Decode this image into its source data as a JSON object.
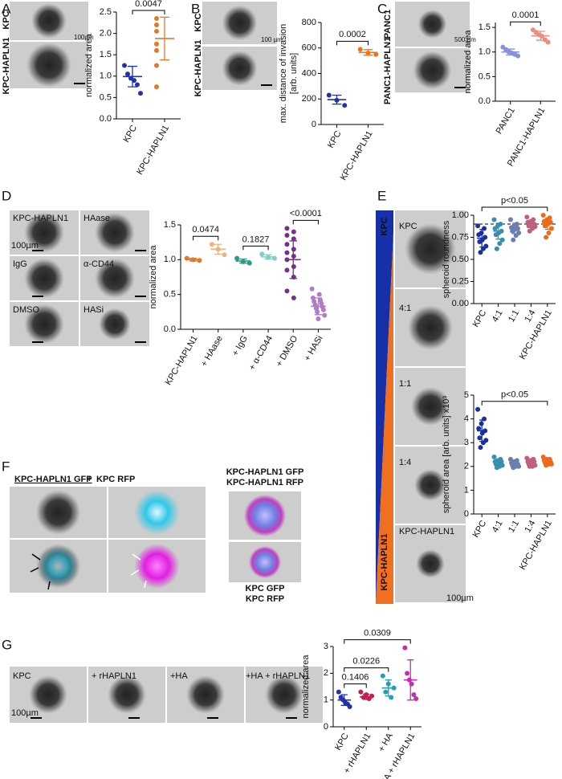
{
  "chart_data": [
    {
      "type": "dot",
      "ylabel": "normalized area",
      "ylim": [
        0,
        2.5
      ],
      "yticks": [
        {
          "value": 0,
          "label": "0.0"
        },
        {
          "value": 0.5,
          "label": "0.5"
        },
        {
          "value": 1,
          "label": "1.0"
        },
        {
          "value": 1.5,
          "label": "1.5"
        },
        {
          "value": 2,
          "label": "2.0"
        },
        {
          "value": 2.5,
          "label": "2.5"
        }
      ],
      "groups": [
        {
          "name": "KPC",
          "color": "#2233aa",
          "points": [
            1.25,
            1.05,
            0.95,
            0.9,
            0.8,
            0.6
          ],
          "mean": 0.99,
          "sd": 0.24
        },
        {
          "name": "KPC-HAPLN1",
          "color": "#e87722",
          "points": [
            2.35,
            2.2,
            2.05,
            1.75,
            1.6,
            1.25,
            0.75
          ],
          "mean": 1.88,
          "sd": 0.5
        }
      ],
      "brackets": [
        {
          "between": [
            0,
            1
          ],
          "label": "0.0047"
        }
      ]
    },
    {
      "type": "dot",
      "ylabel": [
        "max. distance of invasion",
        "[arb. units]"
      ],
      "ylim": [
        0,
        800
      ],
      "yticks": [
        0,
        200,
        400,
        600,
        800
      ],
      "groups": [
        {
          "name": "KPC",
          "color": "#2233aa",
          "points": [
            230,
            190,
            150
          ],
          "mean": 195,
          "sd": 35
        },
        {
          "name": "KPC-HAPLN1",
          "color": "#e87722",
          "points": [
            590,
            560,
            550
          ],
          "mean": 565,
          "sd": 22
        }
      ],
      "brackets": [
        {
          "between": [
            0,
            1
          ],
          "label": "0.0002"
        }
      ]
    },
    {
      "type": "dot",
      "ylabel": "normalized area",
      "ylim": [
        0,
        1.6
      ],
      "yticks": [
        {
          "value": 0,
          "label": "0.0"
        },
        {
          "value": 0.5,
          "label": "0.5"
        },
        {
          "value": 1,
          "label": "1.0"
        },
        {
          "value": 1.5,
          "label": "1.5"
        }
      ],
      "groups": [
        {
          "name": "PANC1",
          "color": "#8a8fe0",
          "points": [
            1.1,
            1.05,
            1.0,
            0.98,
            0.95,
            0.92
          ],
          "mean": 1.0,
          "sd": 0.06
        },
        {
          "name": "PANC1-HAPLN1",
          "color": "#f08a80",
          "points": [
            1.45,
            1.4,
            1.35,
            1.32,
            1.25,
            1.2
          ],
          "mean": 1.33,
          "sd": 0.09
        }
      ],
      "brackets": [
        {
          "between": [
            0,
            1
          ],
          "label": "0.0001"
        }
      ]
    },
    {
      "type": "dot",
      "ylabel": "normalized area",
      "ylim": [
        0,
        1.5
      ],
      "yticks": [
        {
          "value": 0,
          "label": "0.0"
        },
        {
          "value": 0.5,
          "label": "0.5"
        },
        {
          "value": 1,
          "label": "1.0"
        },
        {
          "value": 1.5,
          "label": "1.5"
        }
      ],
      "groups": [
        {
          "name": "KPC-HAPLN1",
          "color": "#e87722",
          "points": [
            1.02,
            1.0,
            0.99
          ],
          "mean": 1.0,
          "sd": 0.02
        },
        {
          "name": "+ HAase",
          "color": "#f2b07a",
          "points": [
            1.22,
            1.15,
            1.07
          ],
          "mean": 1.15,
          "sd": 0.07
        },
        {
          "name": "+ IgG",
          "color": "#2a9a80",
          "points": [
            1.02,
            0.97,
            0.95
          ],
          "mean": 0.98,
          "sd": 0.03
        },
        {
          "name": "+ α-CD44",
          "color": "#7fd0c0",
          "points": [
            1.08,
            1.03,
            1.02
          ],
          "mean": 1.04,
          "sd": 0.03
        },
        {
          "name": "+ DMSO",
          "color": "#7b2d8e",
          "points": [
            1.45,
            1.4,
            1.35,
            1.3,
            1.22,
            1.15,
            1.1,
            1.05,
            1.0,
            0.9,
            0.85,
            0.75,
            0.55,
            0.45
          ],
          "mean": 1.0,
          "sd": 0.27
        },
        {
          "name": "+ HASi",
          "color": "#b07cc8",
          "points": [
            0.58,
            0.5,
            0.45,
            0.42,
            0.4,
            0.37,
            0.35,
            0.32,
            0.3,
            0.28,
            0.25,
            0.2,
            0.15
          ],
          "mean": 0.33,
          "sd": 0.12
        }
      ],
      "brackets": [
        {
          "between": [
            0,
            1
          ],
          "label": "0.0474"
        },
        {
          "between": [
            2,
            3
          ],
          "label": "0.1827"
        },
        {
          "between": [
            4,
            5
          ],
          "label": "<0.0001"
        }
      ]
    },
    {
      "type": "dot",
      "ylabel": "spheroid roundness",
      "ylim": [
        0,
        1
      ],
      "reference_line": 0.9,
      "yticks": [
        {
          "value": 0,
          "label": "0.00"
        },
        {
          "value": 0.25,
          "label": "0.25"
        },
        {
          "value": 0.5,
          "label": "0.50"
        },
        {
          "value": 0.75,
          "label": "0.75"
        },
        {
          "value": 1,
          "label": "1.00"
        }
      ],
      "groups": [
        {
          "name": "KPC",
          "color": "#1a2fa0",
          "points": [
            0.88,
            0.85,
            0.8,
            0.78,
            0.75,
            0.72,
            0.7,
            0.65,
            0.62,
            0.58
          ],
          "mean": 0.74,
          "sd": 0.1
        },
        {
          "name": "4:1",
          "color": "#3a8fb0",
          "points": [
            0.95,
            0.9,
            0.88,
            0.85,
            0.82,
            0.8,
            0.78,
            0.72,
            0.68,
            0.62
          ],
          "mean": 0.82,
          "sd": 0.09
        },
        {
          "name": "1:1",
          "color": "#6a7fb0",
          "points": [
            0.95,
            0.9,
            0.88,
            0.86,
            0.85,
            0.84,
            0.82,
            0.8,
            0.77,
            0.72
          ],
          "mean": 0.85,
          "sd": 0.06
        },
        {
          "name": "1:4",
          "color": "#c06080",
          "points": [
            0.98,
            0.95,
            0.93,
            0.92,
            0.9,
            0.9,
            0.88,
            0.87,
            0.85,
            0.82
          ],
          "mean": 0.9,
          "sd": 0.04
        },
        {
          "name": "KPC-HAPLN1",
          "color": "#ee6a1a",
          "points": [
            1.0,
            0.97,
            0.95,
            0.93,
            0.92,
            0.9,
            0.88,
            0.85,
            0.8,
            0.75
          ],
          "mean": 0.9,
          "sd": 0.06
        }
      ],
      "brackets": [
        {
          "between": [
            0,
            4
          ],
          "label": "p<0.05"
        }
      ]
    },
    {
      "type": "dot",
      "ylabel": "spheroid area [arb. units] x10³",
      "ylim": [
        0,
        5
      ],
      "yticks": [
        0,
        1,
        2,
        3,
        4,
        5
      ],
      "groups": [
        {
          "name": "KPC",
          "color": "#1a2fa0",
          "points": [
            4.4,
            4.0,
            3.8,
            3.6,
            3.5,
            3.4,
            3.2,
            3.1,
            3.0,
            2.8
          ],
          "mean": 3.5,
          "sd": 0.45
        },
        {
          "name": "4:1",
          "color": "#3a8fb0",
          "points": [
            2.4,
            2.3,
            2.25,
            2.2,
            2.2,
            2.15,
            2.1,
            2.05,
            2.0,
            1.95
          ],
          "mean": 2.18,
          "sd": 0.12
        },
        {
          "name": "1:1",
          "color": "#6a7fb0",
          "points": [
            2.3,
            2.25,
            2.2,
            2.15,
            2.1,
            2.1,
            2.05,
            2.0,
            2.0,
            1.95
          ],
          "mean": 2.1,
          "sd": 0.1
        },
        {
          "name": "1:4",
          "color": "#c06080",
          "points": [
            2.35,
            2.3,
            2.25,
            2.2,
            2.2,
            2.15,
            2.1,
            2.05,
            2.0,
            2.0
          ],
          "mean": 2.16,
          "sd": 0.1
        },
        {
          "name": "KPC-HAPLN1",
          "color": "#ee6a1a",
          "points": [
            2.4,
            2.3,
            2.3,
            2.25,
            2.2,
            2.2,
            2.15,
            2.1,
            2.1,
            2.05
          ],
          "mean": 2.2,
          "sd": 0.1
        }
      ],
      "brackets": [
        {
          "between": [
            0,
            4
          ],
          "label": "p<0.05"
        }
      ]
    },
    {
      "type": "dot",
      "ylabel": "normalized area",
      "ylim": [
        0,
        3
      ],
      "yticks": [
        0,
        1,
        2,
        3
      ],
      "groups": [
        {
          "name": "KPC",
          "color": "#2233aa",
          "points": [
            1.3,
            1.1,
            1.0,
            0.9,
            0.85,
            0.75
          ],
          "mean": 1.0,
          "sd": 0.2
        },
        {
          "name": "+ rHAPLN1",
          "color": "#c02050",
          "points": [
            1.3,
            1.2,
            1.15,
            1.1,
            1.05
          ],
          "mean": 1.12,
          "sd": 0.1
        },
        {
          "name": "+ HA",
          "color": "#20a0b0",
          "points": [
            1.9,
            1.6,
            1.45,
            1.3,
            1.1
          ],
          "mean": 1.45,
          "sd": 0.3
        },
        {
          "name": "+ HA + rHAPLN1",
          "color": "#c030b0",
          "points": [
            2.95,
            2.0,
            1.75,
            1.6,
            1.2,
            1.05
          ],
          "mean": 1.75,
          "sd": 0.75
        }
      ],
      "brackets": [
        {
          "between": [
            0,
            1
          ],
          "label": "0.1406"
        },
        {
          "between": [
            0,
            2
          ],
          "label": "0.0226"
        },
        {
          "between": [
            0,
            3
          ],
          "label": "0.0309"
        }
      ]
    }
  ],
  "panels": [
    {
      "letter": "A",
      "labels": [
        "KPC",
        "KPC-HAPLN1",
        "100µm"
      ]
    },
    {
      "letter": "B",
      "labels": [
        "KPC",
        "KPC-HAPLN1",
        "100 µm"
      ]
    },
    {
      "letter": "C",
      "labels": [
        "PANC1",
        "PANC1-HAPLN1",
        "500 µm"
      ]
    },
    {
      "letter": "D",
      "labels": [
        "KPC-HAPLN1",
        "HAase",
        "IgG",
        "α-CD44",
        "DMSO",
        "HASi",
        "100µm"
      ]
    },
    {
      "letter": "E",
      "labels": [
        "KPC",
        "KPC-HAPLN1",
        "KPC",
        "4:1",
        "1:1",
        "1:4",
        "KPC-HAPLN1",
        "100µm"
      ]
    },
    {
      "letter": "F",
      "labels": [
        "KPC-HAPLN1 GFP",
        "+",
        "KPC RFP",
        "KPC-HAPLN1 GFP",
        "KPC-HAPLN1 RFP",
        "KPC GFP",
        "KPC RFP"
      ]
    },
    {
      "letter": "G",
      "labels": [
        "KPC",
        "+ rHAPLN1",
        "+HA",
        "+HA + rHAPLN1",
        "100µm"
      ]
    }
  ]
}
